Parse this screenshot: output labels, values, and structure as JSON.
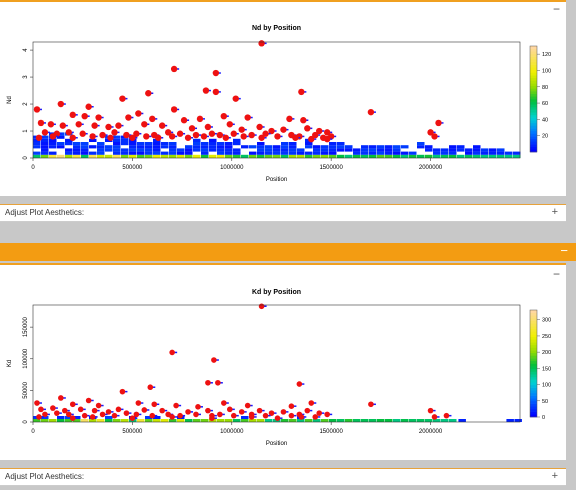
{
  "panel1": {
    "collapse_label": "−",
    "aesthetics_label": "Adjust Plot Aesthetics:",
    "expand_label": "+"
  },
  "panel2": {
    "header_min": "−",
    "collapse_label": "−",
    "aesthetics_label": "Adjust Plot Aesthetics:",
    "expand_label": "+"
  },
  "chart_data": [
    {
      "type": "scatter",
      "title": "Nd by Position",
      "xlabel": "Position",
      "ylabel": "Nd",
      "xlim": [
        0,
        2450000
      ],
      "ylim": [
        0,
        4.3
      ],
      "x_ticks": [
        0,
        500000,
        1000000,
        1500000,
        2000000
      ],
      "x_tick_labels": [
        "0",
        "500000",
        "1000000",
        "1500000",
        "2000000"
      ],
      "y_ticks": [
        0,
        1,
        2,
        3,
        4
      ],
      "y_tick_labels": [
        "0",
        "1",
        "2",
        "3",
        "4"
      ],
      "legend": {
        "type": "colorbar",
        "ticks": [
          20,
          40,
          60,
          80,
          100,
          120
        ],
        "labels": [
          "20",
          "40",
          "60",
          "80",
          "100",
          "120"
        ],
        "max": 130
      },
      "density_max_x": 2450000,
      "outliers": [
        [
          1150000,
          4.25
        ],
        [
          710000,
          3.3
        ],
        [
          920000,
          3.15
        ],
        [
          580000,
          2.4
        ],
        [
          870000,
          2.5
        ],
        [
          920000,
          2.45
        ],
        [
          1350000,
          2.45
        ],
        [
          450000,
          2.2
        ],
        [
          1020000,
          2.2
        ],
        [
          140000,
          2.0
        ],
        [
          280000,
          1.9
        ],
        [
          710000,
          1.8
        ],
        [
          20000,
          1.8
        ],
        [
          1700000,
          1.7
        ],
        [
          200000,
          1.6
        ],
        [
          260000,
          1.55
        ],
        [
          330000,
          1.5
        ],
        [
          480000,
          1.5
        ],
        [
          530000,
          1.65
        ],
        [
          600000,
          1.45
        ],
        [
          760000,
          1.4
        ],
        [
          840000,
          1.45
        ],
        [
          960000,
          1.55
        ],
        [
          1080000,
          1.5
        ],
        [
          1290000,
          1.45
        ],
        [
          1360000,
          1.4
        ],
        [
          2040000,
          1.3
        ],
        [
          40000,
          1.3
        ],
        [
          90000,
          1.25
        ],
        [
          150000,
          1.2
        ],
        [
          230000,
          1.25
        ],
        [
          310000,
          1.2
        ],
        [
          380000,
          1.15
        ],
        [
          430000,
          1.2
        ],
        [
          560000,
          1.25
        ],
        [
          650000,
          1.2
        ],
        [
          800000,
          1.1
        ],
        [
          880000,
          1.15
        ],
        [
          990000,
          1.25
        ],
        [
          1050000,
          1.05
        ],
        [
          1140000,
          1.15
        ],
        [
          1200000,
          1.0
        ],
        [
          1260000,
          1.05
        ],
        [
          1380000,
          1.1
        ],
        [
          1440000,
          1.0
        ],
        [
          1480000,
          0.95
        ],
        [
          2000000,
          0.95
        ],
        [
          60000,
          0.95
        ],
        [
          120000,
          0.9
        ],
        [
          180000,
          0.95
        ],
        [
          250000,
          0.9
        ],
        [
          350000,
          0.85
        ],
        [
          410000,
          0.95
        ],
        [
          470000,
          0.85
        ],
        [
          520000,
          0.9
        ],
        [
          610000,
          0.85
        ],
        [
          680000,
          0.95
        ],
        [
          740000,
          0.9
        ],
        [
          820000,
          0.85
        ],
        [
          900000,
          0.9
        ],
        [
          940000,
          0.85
        ],
        [
          1010000,
          0.9
        ],
        [
          1100000,
          0.85
        ],
        [
          1170000,
          0.9
        ],
        [
          1300000,
          0.85
        ],
        [
          1340000,
          0.8
        ],
        [
          1420000,
          0.85
        ],
        [
          1460000,
          0.75
        ],
        [
          1500000,
          0.8
        ],
        [
          2020000,
          0.8
        ],
        [
          30000,
          0.75
        ],
        [
          100000,
          0.8
        ],
        [
          200000,
          0.75
        ],
        [
          300000,
          0.8
        ],
        [
          390000,
          0.75
        ],
        [
          500000,
          0.75
        ],
        [
          570000,
          0.8
        ],
        [
          630000,
          0.75
        ],
        [
          700000,
          0.8
        ],
        [
          780000,
          0.75
        ],
        [
          860000,
          0.8
        ],
        [
          970000,
          0.75
        ],
        [
          1060000,
          0.8
        ],
        [
          1150000,
          0.75
        ],
        [
          1230000,
          0.8
        ],
        [
          1320000,
          0.75
        ],
        [
          1400000,
          0.7
        ],
        [
          1480000,
          0.7
        ]
      ]
    },
    {
      "type": "scatter",
      "title": "Kd by Position",
      "xlabel": "Position",
      "ylabel": "Kd",
      "xlim": [
        0,
        2450000
      ],
      "ylim": [
        0,
        185000
      ],
      "x_ticks": [
        0,
        500000,
        1000000,
        1500000,
        2000000
      ],
      "x_tick_labels": [
        "0",
        "500000",
        "1000000",
        "1500000",
        "2000000"
      ],
      "y_ticks": [
        0,
        50000,
        100000,
        150000
      ],
      "y_tick_labels": [
        "0",
        "50000",
        "100000",
        "150000"
      ],
      "legend": {
        "type": "colorbar",
        "ticks": [
          0,
          50,
          100,
          150,
          200,
          250,
          300
        ],
        "labels": [
          "0",
          "50",
          "100",
          "150",
          "200",
          "250",
          "300"
        ],
        "max": 330
      },
      "density_max_x": 2100000,
      "outliers": [
        [
          1150000,
          183000
        ],
        [
          700000,
          110000
        ],
        [
          910000,
          98000
        ],
        [
          880000,
          62000
        ],
        [
          930000,
          62000
        ],
        [
          1340000,
          60000
        ],
        [
          590000,
          55000
        ],
        [
          450000,
          48000
        ],
        [
          1700000,
          28000
        ],
        [
          140000,
          38000
        ],
        [
          280000,
          34000
        ],
        [
          20000,
          30000
        ],
        [
          200000,
          28000
        ],
        [
          330000,
          26000
        ],
        [
          530000,
          30000
        ],
        [
          610000,
          28000
        ],
        [
          720000,
          26000
        ],
        [
          830000,
          24000
        ],
        [
          960000,
          30000
        ],
        [
          1080000,
          26000
        ],
        [
          1300000,
          25000
        ],
        [
          1400000,
          30000
        ],
        [
          2000000,
          18000
        ],
        [
          40000,
          20000
        ],
        [
          100000,
          22000
        ],
        [
          160000,
          18000
        ],
        [
          240000,
          20000
        ],
        [
          310000,
          18000
        ],
        [
          380000,
          16000
        ],
        [
          430000,
          20000
        ],
        [
          560000,
          19000
        ],
        [
          650000,
          18000
        ],
        [
          780000,
          16000
        ],
        [
          880000,
          18000
        ],
        [
          990000,
          20000
        ],
        [
          1050000,
          16000
        ],
        [
          1140000,
          18000
        ],
        [
          1200000,
          14000
        ],
        [
          1260000,
          16000
        ],
        [
          1380000,
          18000
        ],
        [
          1440000,
          14000
        ],
        [
          1480000,
          12000
        ],
        [
          60000,
          12000
        ],
        [
          120000,
          14000
        ],
        [
          180000,
          12000
        ],
        [
          260000,
          10000
        ],
        [
          350000,
          12000
        ],
        [
          410000,
          10000
        ],
        [
          470000,
          14000
        ],
        [
          520000,
          12000
        ],
        [
          600000,
          10000
        ],
        [
          680000,
          12000
        ],
        [
          740000,
          10000
        ],
        [
          820000,
          12000
        ],
        [
          900000,
          10000
        ],
        [
          940000,
          12000
        ],
        [
          1010000,
          10000
        ],
        [
          1100000,
          12000
        ],
        [
          1170000,
          10000
        ],
        [
          1300000,
          10000
        ],
        [
          1340000,
          12000
        ],
        [
          1420000,
          8000
        ],
        [
          2020000,
          8000
        ],
        [
          2080000,
          10000
        ],
        [
          30000,
          8000
        ],
        [
          200000,
          6000
        ],
        [
          300000,
          8000
        ],
        [
          500000,
          6000
        ],
        [
          700000,
          8000
        ],
        [
          900000,
          6000
        ],
        [
          1100000,
          8000
        ],
        [
          1230000,
          6000
        ],
        [
          1350000,
          8000
        ]
      ]
    }
  ]
}
